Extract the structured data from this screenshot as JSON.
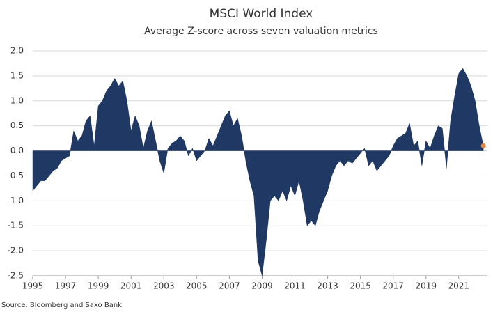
{
  "chart_data": {
    "type": "area",
    "title": "MSCI World Index",
    "subtitle": "Average Z-score across seven valuation metrics",
    "source": "Source: Bloomberg and Saxo Bank",
    "color": "#1f3864",
    "marker_color": "#e8833a",
    "grid": true,
    "xlim": [
      1995,
      2022.75
    ],
    "xticks": [
      1995,
      1997,
      1999,
      2001,
      2003,
      2005,
      2007,
      2009,
      2011,
      2013,
      2015,
      2017,
      2019,
      2021
    ],
    "ylim": [
      -2.5,
      2.0
    ],
    "yticks": [
      {
        "value": 2,
        "label": "2.0"
      },
      1.5,
      {
        "value": 1,
        "label": "1.0"
      },
      0.5,
      {
        "value": 0,
        "label": "0.0"
      },
      -0.5,
      {
        "value": -1,
        "label": "-1.0"
      },
      -1.5,
      {
        "value": -2,
        "label": "-2.0"
      },
      -2.5
    ],
    "x": [
      1995.0,
      1995.25,
      1995.5,
      1995.75,
      1996.0,
      1996.25,
      1996.5,
      1996.75,
      1997.0,
      1997.25,
      1997.5,
      1997.75,
      1998.0,
      1998.25,
      1998.5,
      1998.75,
      1999.0,
      1999.25,
      1999.5,
      1999.75,
      2000.0,
      2000.25,
      2000.5,
      2000.75,
      2001.0,
      2001.25,
      2001.5,
      2001.75,
      2002.0,
      2002.25,
      2002.5,
      2002.75,
      2003.0,
      2003.25,
      2003.5,
      2003.75,
      2004.0,
      2004.25,
      2004.5,
      2004.75,
      2005.0,
      2005.25,
      2005.5,
      2005.75,
      2006.0,
      2006.25,
      2006.5,
      2006.75,
      2007.0,
      2007.25,
      2007.5,
      2007.75,
      2008.0,
      2008.25,
      2008.5,
      2008.75,
      2009.0,
      2009.25,
      2009.5,
      2009.75,
      2010.0,
      2010.25,
      2010.5,
      2010.75,
      2011.0,
      2011.25,
      2011.5,
      2011.75,
      2012.0,
      2012.25,
      2012.5,
      2012.75,
      2013.0,
      2013.25,
      2013.5,
      2013.75,
      2014.0,
      2014.25,
      2014.5,
      2014.75,
      2015.0,
      2015.25,
      2015.5,
      2015.75,
      2016.0,
      2016.25,
      2016.5,
      2016.75,
      2017.0,
      2017.25,
      2017.5,
      2017.75,
      2018.0,
      2018.25,
      2018.5,
      2018.75,
      2019.0,
      2019.25,
      2019.5,
      2019.75,
      2020.0,
      2020.25,
      2020.5,
      2020.75,
      2021.0,
      2021.25,
      2021.5,
      2021.75,
      2022.0,
      2022.25,
      2022.5
    ],
    "values": [
      -0.8,
      -0.7,
      -0.6,
      -0.6,
      -0.5,
      -0.4,
      -0.35,
      -0.2,
      -0.15,
      -0.1,
      0.4,
      0.2,
      0.3,
      0.6,
      0.7,
      0.1,
      0.9,
      1.0,
      1.2,
      1.3,
      1.45,
      1.3,
      1.4,
      1.0,
      0.4,
      0.7,
      0.5,
      0.05,
      0.4,
      0.6,
      0.2,
      -0.2,
      -0.45,
      0.05,
      0.15,
      0.2,
      0.3,
      0.2,
      -0.1,
      0.05,
      -0.2,
      -0.1,
      0.0,
      0.25,
      0.1,
      0.3,
      0.5,
      0.7,
      0.8,
      0.5,
      0.65,
      0.3,
      -0.2,
      -0.6,
      -0.9,
      -2.2,
      -2.5,
      -1.8,
      -1.0,
      -0.9,
      -1.0,
      -0.8,
      -1.0,
      -0.7,
      -0.9,
      -0.6,
      -1.0,
      -1.5,
      -1.4,
      -1.5,
      -1.2,
      -1.0,
      -0.8,
      -0.5,
      -0.3,
      -0.2,
      -0.3,
      -0.2,
      -0.25,
      -0.15,
      -0.05,
      0.05,
      -0.3,
      -0.2,
      -0.4,
      -0.3,
      -0.2,
      -0.1,
      0.1,
      0.25,
      0.3,
      0.35,
      0.55,
      0.1,
      0.2,
      -0.3,
      0.2,
      0.05,
      0.3,
      0.5,
      0.45,
      -0.35,
      0.6,
      1.1,
      1.55,
      1.65,
      1.5,
      1.3,
      1.0,
      0.5,
      0.1
    ]
  }
}
